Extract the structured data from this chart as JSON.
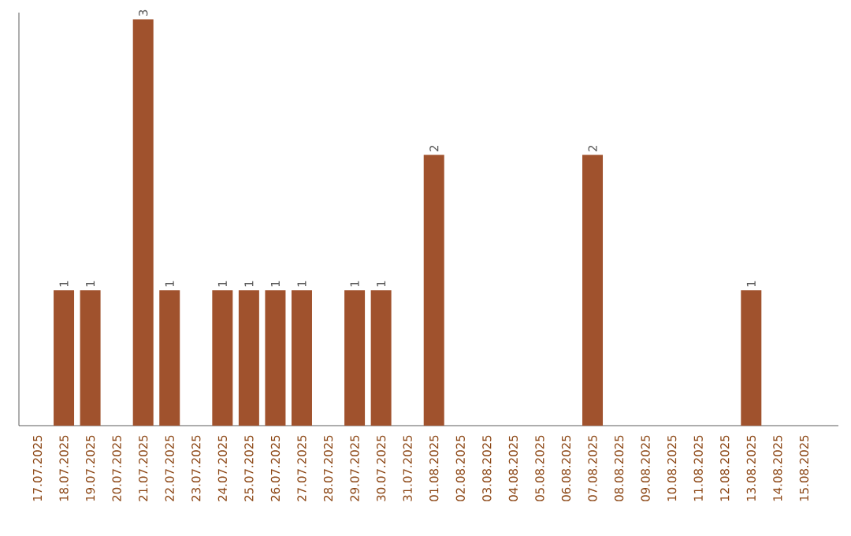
{
  "chart_data": {
    "type": "bar",
    "categories": [
      "17.07.2025",
      "18.07.2025",
      "19.07.2025",
      "20.07.2025",
      "21.07.2025",
      "22.07.2025",
      "23.07.2025",
      "24.07.2025",
      "25.07.2025",
      "26.07.2025",
      "27.07.2025",
      "28.07.2025",
      "29.07.2025",
      "30.07.2025",
      "31.07.2025",
      "01.08.2025",
      "02.08.2025",
      "03.08.2025",
      "04.08.2025",
      "05.08.2025",
      "06.08.2025",
      "07.08.2025",
      "08.08.2025",
      "09.08.2025",
      "10.08.2025",
      "11.08.2025",
      "12.08.2025",
      "13.08.2025",
      "14.08.2025",
      "15.08.2025"
    ],
    "values": [
      0,
      1,
      1,
      0,
      3,
      1,
      0,
      1,
      1,
      1,
      1,
      0,
      1,
      1,
      0,
      2,
      0,
      0,
      0,
      0,
      0,
      2,
      0,
      0,
      0,
      0,
      0,
      1,
      0,
      0
    ],
    "value_labels": [
      null,
      "1",
      "1",
      null,
      "3",
      "1",
      null,
      "1",
      "1",
      "1",
      "1",
      null,
      "1",
      "1",
      null,
      "2",
      null,
      null,
      null,
      null,
      null,
      "2",
      null,
      null,
      null,
      null,
      null,
      "1",
      null,
      null
    ],
    "color": "#a0522d",
    "ylim": [
      0,
      3.05
    ]
  }
}
